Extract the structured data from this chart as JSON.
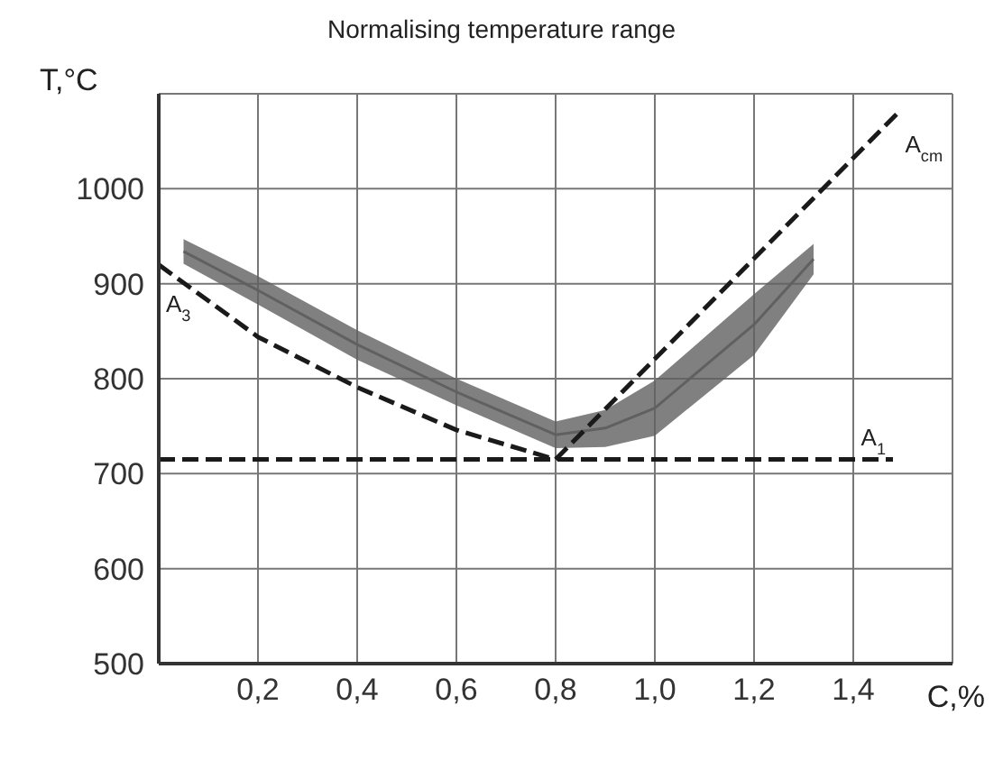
{
  "chart_data": {
    "type": "line",
    "title": "Normalising temperature range",
    "xlabel": "C,%",
    "ylabel": "T,°C",
    "xlim": [
      0,
      1.6
    ],
    "xticks": [
      {
        "value": 0.2,
        "label": "0,2"
      },
      {
        "value": 0.4,
        "label": "0,4"
      },
      {
        "value": 0.6,
        "label": "0,6"
      },
      {
        "value": 0.8,
        "label": "0,8"
      },
      {
        "value": 1.0,
        "label": "1,0"
      },
      {
        "value": 1.2,
        "label": "1,2"
      },
      {
        "value": 1.4,
        "label": "1,4"
      }
    ],
    "ylim": [
      500,
      1100
    ],
    "yticks": [
      500,
      600,
      700,
      800,
      900,
      1000
    ],
    "grid": true,
    "legend": false,
    "line_style": "dashed",
    "marker": "none",
    "series": [
      {
        "color": "#606060",
        "line_style": "solid",
        "x": [
          0.05,
          0.2,
          0.4,
          0.6,
          0.8,
          0.9,
          1.0,
          1.2,
          1.32
        ],
        "values": [
          934,
          893,
          836,
          786,
          741,
          748,
          769,
          857,
          926
        ],
        "lower": [
          921,
          878,
          820,
          772,
          727,
          728,
          740,
          825,
          910
        ],
        "upper": [
          947,
          908,
          851,
          800,
          755,
          767,
          798,
          889,
          942
        ]
      },
      {
        "name": "A$_{3}$",
        "color": "#1a1a1a",
        "x": [
          0,
          0.2,
          0.4,
          0.6,
          0.8
        ],
        "values": [
          920,
          844,
          791,
          746,
          715
        ]
      },
      {
        "name": "A$_{cm}$",
        "color": "#1a1a1a",
        "x": [
          0.8,
          1.49
        ],
        "values": [
          715,
          1080
        ]
      },
      {
        "name": "A$_{1}$",
        "color": "#1a1a1a",
        "x": [
          0,
          1.48
        ],
        "values": [
          715,
          715
        ]
      }
    ]
  }
}
